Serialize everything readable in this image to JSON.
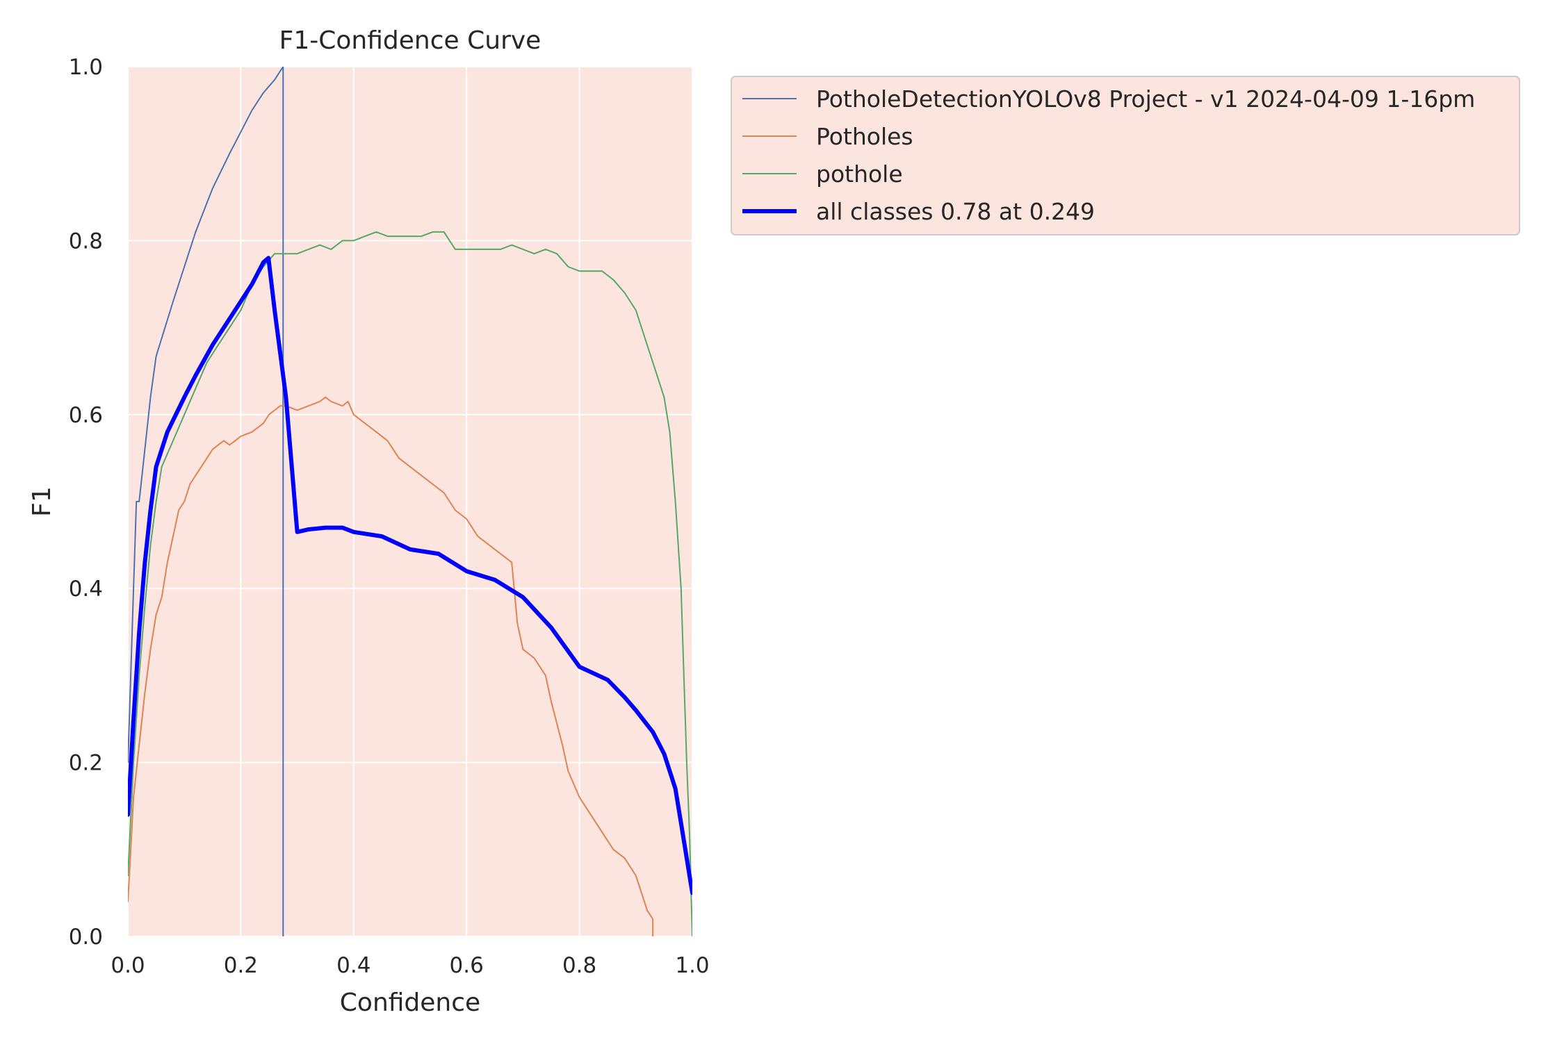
{
  "colors": {
    "plot_background": "#fce4df",
    "grid": "#ffffff",
    "legend_background": "#fce4df",
    "legend_border": "#cccccc"
  },
  "chart_data": {
    "type": "line",
    "title": "F1-Confidence Curve",
    "xlabel": "Confidence",
    "ylabel": "F1",
    "xlim": [
      0,
      1
    ],
    "ylim": [
      0,
      1
    ],
    "xticks": [
      "0.0",
      "0.2",
      "0.4",
      "0.6",
      "0.8",
      "1.0"
    ],
    "yticks": [
      "0.0",
      "0.2",
      "0.4",
      "0.6",
      "0.8",
      "1.0"
    ],
    "grid": true,
    "legend_position": "outside-top-right",
    "series": [
      {
        "name": "PotholeDetectionYOLOv8 Project - v1 2024-04-09 1-16pm",
        "color": "#4c72b0",
        "width": 2,
        "points": [
          [
            0,
            0.2
          ],
          [
            0.005,
            0.3
          ],
          [
            0.01,
            0.4
          ],
          [
            0.015,
            0.5
          ],
          [
            0.02,
            0.5
          ],
          [
            0.03,
            0.56
          ],
          [
            0.04,
            0.62
          ],
          [
            0.05,
            0.667
          ],
          [
            0.08,
            0.73
          ],
          [
            0.1,
            0.77
          ],
          [
            0.12,
            0.81
          ],
          [
            0.15,
            0.86
          ],
          [
            0.18,
            0.9
          ],
          [
            0.2,
            0.925
          ],
          [
            0.22,
            0.95
          ],
          [
            0.24,
            0.97
          ],
          [
            0.26,
            0.985
          ],
          [
            0.275,
            1.0
          ],
          [
            0.275,
            0.0
          ]
        ]
      },
      {
        "name": "Potholes",
        "color": "#dd8452",
        "width": 2,
        "points": [
          [
            0,
            0.04
          ],
          [
            0.005,
            0.1
          ],
          [
            0.01,
            0.16
          ],
          [
            0.02,
            0.22
          ],
          [
            0.03,
            0.28
          ],
          [
            0.04,
            0.33
          ],
          [
            0.05,
            0.37
          ],
          [
            0.06,
            0.39
          ],
          [
            0.07,
            0.43
          ],
          [
            0.08,
            0.46
          ],
          [
            0.09,
            0.49
          ],
          [
            0.1,
            0.5
          ],
          [
            0.11,
            0.52
          ],
          [
            0.12,
            0.53
          ],
          [
            0.13,
            0.54
          ],
          [
            0.14,
            0.55
          ],
          [
            0.15,
            0.56
          ],
          [
            0.16,
            0.565
          ],
          [
            0.17,
            0.57
          ],
          [
            0.18,
            0.565
          ],
          [
            0.19,
            0.57
          ],
          [
            0.2,
            0.575
          ],
          [
            0.22,
            0.58
          ],
          [
            0.24,
            0.59
          ],
          [
            0.25,
            0.6
          ],
          [
            0.26,
            0.605
          ],
          [
            0.27,
            0.61
          ],
          [
            0.28,
            0.61
          ],
          [
            0.3,
            0.605
          ],
          [
            0.32,
            0.61
          ],
          [
            0.34,
            0.615
          ],
          [
            0.35,
            0.62
          ],
          [
            0.36,
            0.615
          ],
          [
            0.38,
            0.61
          ],
          [
            0.39,
            0.615
          ],
          [
            0.4,
            0.6
          ],
          [
            0.42,
            0.59
          ],
          [
            0.44,
            0.58
          ],
          [
            0.46,
            0.57
          ],
          [
            0.48,
            0.55
          ],
          [
            0.5,
            0.54
          ],
          [
            0.52,
            0.53
          ],
          [
            0.54,
            0.52
          ],
          [
            0.56,
            0.51
          ],
          [
            0.58,
            0.49
          ],
          [
            0.6,
            0.48
          ],
          [
            0.62,
            0.46
          ],
          [
            0.64,
            0.45
          ],
          [
            0.66,
            0.44
          ],
          [
            0.68,
            0.43
          ],
          [
            0.69,
            0.36
          ],
          [
            0.7,
            0.33
          ],
          [
            0.72,
            0.32
          ],
          [
            0.74,
            0.3
          ],
          [
            0.75,
            0.27
          ],
          [
            0.77,
            0.22
          ],
          [
            0.78,
            0.19
          ],
          [
            0.8,
            0.16
          ],
          [
            0.82,
            0.14
          ],
          [
            0.84,
            0.12
          ],
          [
            0.86,
            0.1
          ],
          [
            0.88,
            0.09
          ],
          [
            0.9,
            0.07
          ],
          [
            0.92,
            0.03
          ],
          [
            0.93,
            0.02
          ],
          [
            0.93,
            0.0
          ]
        ]
      },
      {
        "name": "pothole",
        "color": "#55a868",
        "width": 2,
        "points": [
          [
            0,
            0.07
          ],
          [
            0.01,
            0.2
          ],
          [
            0.02,
            0.3
          ],
          [
            0.03,
            0.38
          ],
          [
            0.04,
            0.45
          ],
          [
            0.05,
            0.5
          ],
          [
            0.06,
            0.54
          ],
          [
            0.08,
            0.57
          ],
          [
            0.1,
            0.6
          ],
          [
            0.12,
            0.63
          ],
          [
            0.14,
            0.66
          ],
          [
            0.16,
            0.68
          ],
          [
            0.18,
            0.7
          ],
          [
            0.2,
            0.72
          ],
          [
            0.22,
            0.75
          ],
          [
            0.24,
            0.77
          ],
          [
            0.26,
            0.785
          ],
          [
            0.28,
            0.785
          ],
          [
            0.3,
            0.785
          ],
          [
            0.32,
            0.79
          ],
          [
            0.34,
            0.795
          ],
          [
            0.36,
            0.79
          ],
          [
            0.38,
            0.8
          ],
          [
            0.4,
            0.8
          ],
          [
            0.42,
            0.805
          ],
          [
            0.44,
            0.81
          ],
          [
            0.46,
            0.805
          ],
          [
            0.48,
            0.805
          ],
          [
            0.5,
            0.805
          ],
          [
            0.52,
            0.805
          ],
          [
            0.54,
            0.81
          ],
          [
            0.56,
            0.81
          ],
          [
            0.57,
            0.8
          ],
          [
            0.58,
            0.79
          ],
          [
            0.6,
            0.79
          ],
          [
            0.62,
            0.79
          ],
          [
            0.64,
            0.79
          ],
          [
            0.66,
            0.79
          ],
          [
            0.68,
            0.795
          ],
          [
            0.7,
            0.79
          ],
          [
            0.72,
            0.785
          ],
          [
            0.74,
            0.79
          ],
          [
            0.76,
            0.785
          ],
          [
            0.78,
            0.77
          ],
          [
            0.8,
            0.765
          ],
          [
            0.82,
            0.765
          ],
          [
            0.84,
            0.765
          ],
          [
            0.86,
            0.755
          ],
          [
            0.88,
            0.74
          ],
          [
            0.9,
            0.72
          ],
          [
            0.91,
            0.7
          ],
          [
            0.92,
            0.68
          ],
          [
            0.93,
            0.66
          ],
          [
            0.94,
            0.64
          ],
          [
            0.95,
            0.62
          ],
          [
            0.96,
            0.58
          ],
          [
            0.97,
            0.5
          ],
          [
            0.98,
            0.4
          ],
          [
            0.985,
            0.3
          ],
          [
            0.99,
            0.2
          ],
          [
            0.995,
            0.12
          ],
          [
            1.0,
            0.0
          ]
        ]
      },
      {
        "name": "all classes 0.78 at 0.249",
        "color": "#0000ff",
        "width": 6,
        "points": [
          [
            0,
            0.14
          ],
          [
            0.01,
            0.25
          ],
          [
            0.02,
            0.35
          ],
          [
            0.03,
            0.43
          ],
          [
            0.04,
            0.49
          ],
          [
            0.05,
            0.54
          ],
          [
            0.07,
            0.58
          ],
          [
            0.1,
            0.62
          ],
          [
            0.12,
            0.645
          ],
          [
            0.15,
            0.68
          ],
          [
            0.2,
            0.73
          ],
          [
            0.22,
            0.75
          ],
          [
            0.24,
            0.775
          ],
          [
            0.249,
            0.78
          ],
          [
            0.26,
            0.72
          ],
          [
            0.28,
            0.62
          ],
          [
            0.3,
            0.465
          ],
          [
            0.32,
            0.468
          ],
          [
            0.35,
            0.47
          ],
          [
            0.38,
            0.47
          ],
          [
            0.4,
            0.465
          ],
          [
            0.45,
            0.46
          ],
          [
            0.5,
            0.445
          ],
          [
            0.55,
            0.44
          ],
          [
            0.6,
            0.42
          ],
          [
            0.65,
            0.41
          ],
          [
            0.7,
            0.39
          ],
          [
            0.75,
            0.355
          ],
          [
            0.8,
            0.31
          ],
          [
            0.85,
            0.295
          ],
          [
            0.88,
            0.275
          ],
          [
            0.9,
            0.26
          ],
          [
            0.93,
            0.235
          ],
          [
            0.95,
            0.21
          ],
          [
            0.97,
            0.17
          ],
          [
            0.98,
            0.13
          ],
          [
            0.99,
            0.09
          ],
          [
            1.0,
            0.05
          ]
        ]
      }
    ]
  }
}
